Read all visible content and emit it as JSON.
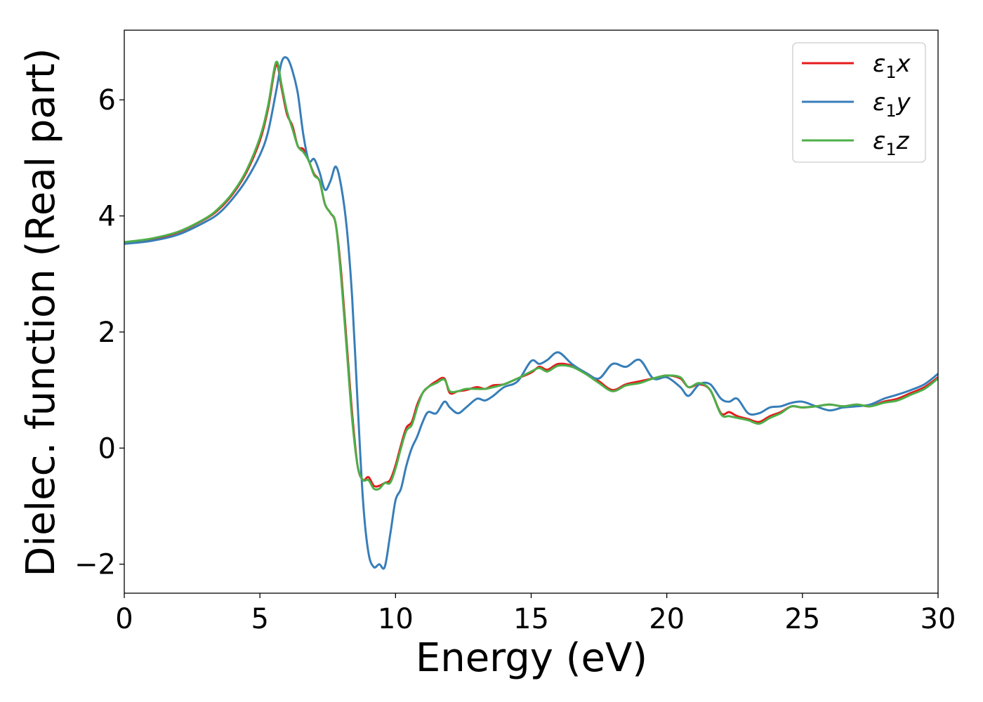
{
  "chart_data": {
    "type": "line",
    "xlabel": "Energy (eV)",
    "ylabel": "Dielec. function (Real part)",
    "xlim": [
      0,
      30
    ],
    "ylim": [
      -2.5,
      7.2
    ],
    "xticks": [
      0,
      5,
      10,
      15,
      20,
      25,
      30
    ],
    "xtick_labels": [
      "0",
      "5",
      "10",
      "15",
      "20",
      "25",
      "30"
    ],
    "yticks": [
      -2,
      0,
      2,
      4,
      6
    ],
    "ytick_labels": [
      "−2",
      "0",
      "2",
      "4",
      "6"
    ],
    "grid": false,
    "legend_position": "top-right",
    "series": [
      {
        "name": "ε1x",
        "legend_base": "ε",
        "legend_sub": "1",
        "legend_suffix": "x",
        "color": "#e41a1c",
        "x": [
          0,
          1,
          2,
          3,
          3.5,
          4,
          4.5,
          5,
          5.3,
          5.6,
          5.8,
          6.0,
          6.2,
          6.4,
          6.6,
          6.8,
          7.0,
          7.2,
          7.4,
          7.6,
          7.8,
          8.0,
          8.2,
          8.4,
          8.6,
          8.8,
          9.0,
          9.2,
          9.4,
          9.6,
          9.8,
          10.0,
          10.2,
          10.4,
          10.6,
          10.8,
          11.0,
          11.2,
          11.5,
          11.8,
          12.0,
          12.3,
          12.6,
          13.0,
          13.3,
          13.6,
          14.0,
          14.5,
          15.0,
          15.3,
          15.6,
          16.0,
          16.5,
          17.0,
          17.5,
          18.0,
          18.5,
          19.0,
          19.5,
          20.0,
          20.5,
          20.8,
          21.2,
          21.6,
          22.0,
          22.3,
          22.6,
          23.0,
          23.4,
          23.8,
          24.2,
          24.6,
          25.0,
          25.5,
          26.0,
          26.5,
          27.0,
          27.5,
          28.0,
          28.5,
          29.0,
          29.5,
          30.0
        ],
        "y": [
          3.54,
          3.6,
          3.72,
          3.95,
          4.12,
          4.38,
          4.75,
          5.3,
          5.85,
          6.6,
          6.2,
          5.75,
          5.55,
          5.2,
          5.15,
          4.95,
          4.72,
          4.6,
          4.2,
          4.05,
          3.85,
          3.0,
          1.8,
          0.6,
          -0.3,
          -0.55,
          -0.5,
          -0.65,
          -0.65,
          -0.6,
          -0.55,
          -0.3,
          0.05,
          0.35,
          0.45,
          0.75,
          0.95,
          1.05,
          1.15,
          1.2,
          0.95,
          0.98,
          1.0,
          1.05,
          1.02,
          1.08,
          1.1,
          1.2,
          1.3,
          1.4,
          1.35,
          1.45,
          1.42,
          1.3,
          1.15,
          1.0,
          1.1,
          1.15,
          1.2,
          1.25,
          1.2,
          1.05,
          1.1,
          1.0,
          0.6,
          0.62,
          0.55,
          0.5,
          0.45,
          0.55,
          0.62,
          0.72,
          0.7,
          0.72,
          0.75,
          0.72,
          0.75,
          0.72,
          0.8,
          0.85,
          0.95,
          1.05,
          1.22
        ]
      },
      {
        "name": "ε1y",
        "legend_base": "ε",
        "legend_sub": "1",
        "legend_suffix": "y",
        "color": "#377eb8",
        "x": [
          0,
          1,
          2,
          3,
          3.5,
          4,
          4.5,
          5,
          5.3,
          5.6,
          5.8,
          6.0,
          6.2,
          6.4,
          6.6,
          6.8,
          7.0,
          7.2,
          7.4,
          7.6,
          7.8,
          8.0,
          8.2,
          8.4,
          8.6,
          8.8,
          9.0,
          9.2,
          9.4,
          9.6,
          9.8,
          10.0,
          10.2,
          10.4,
          10.6,
          10.8,
          11.0,
          11.2,
          11.5,
          11.8,
          12.0,
          12.3,
          12.6,
          13.0,
          13.3,
          13.6,
          14.0,
          14.5,
          15.0,
          15.3,
          15.6,
          16.0,
          16.5,
          17.0,
          17.5,
          18.0,
          18.5,
          19.0,
          19.5,
          20.0,
          20.5,
          20.8,
          21.2,
          21.6,
          22.0,
          22.3,
          22.6,
          23.0,
          23.4,
          23.8,
          24.2,
          24.6,
          25.0,
          25.5,
          26.0,
          26.5,
          27.0,
          27.5,
          28.0,
          28.5,
          29.0,
          29.5,
          30.0
        ],
        "y": [
          3.52,
          3.57,
          3.68,
          3.9,
          4.05,
          4.3,
          4.62,
          5.05,
          5.45,
          6.15,
          6.65,
          6.72,
          6.5,
          6.1,
          5.4,
          4.95,
          4.98,
          4.75,
          4.45,
          4.6,
          4.85,
          4.5,
          3.8,
          2.6,
          0.8,
          -0.9,
          -1.8,
          -2.05,
          -2.0,
          -2.05,
          -1.5,
          -0.9,
          -0.7,
          -0.3,
          0.0,
          0.2,
          0.45,
          0.62,
          0.6,
          0.8,
          0.7,
          0.6,
          0.7,
          0.85,
          0.82,
          0.9,
          1.05,
          1.15,
          1.5,
          1.45,
          1.52,
          1.65,
          1.45,
          1.3,
          1.2,
          1.45,
          1.4,
          1.52,
          1.2,
          1.22,
          1.05,
          0.9,
          1.1,
          1.1,
          0.85,
          0.8,
          0.85,
          0.6,
          0.6,
          0.7,
          0.72,
          0.78,
          0.8,
          0.72,
          0.65,
          0.7,
          0.72,
          0.75,
          0.85,
          0.92,
          1.0,
          1.1,
          1.28
        ]
      },
      {
        "name": "ε1z",
        "legend_base": "ε",
        "legend_sub": "1",
        "legend_suffix": "z",
        "color": "#4daf4a",
        "x": [
          0,
          1,
          2,
          3,
          3.5,
          4,
          4.5,
          5,
          5.3,
          5.6,
          5.8,
          6.0,
          6.2,
          6.4,
          6.6,
          6.8,
          7.0,
          7.2,
          7.4,
          7.6,
          7.8,
          8.0,
          8.2,
          8.4,
          8.6,
          8.8,
          9.0,
          9.2,
          9.4,
          9.6,
          9.8,
          10.0,
          10.2,
          10.4,
          10.6,
          10.8,
          11.0,
          11.2,
          11.5,
          11.8,
          12.0,
          12.3,
          12.6,
          13.0,
          13.3,
          13.6,
          14.0,
          14.5,
          15.0,
          15.3,
          15.6,
          16.0,
          16.5,
          17.0,
          17.5,
          18.0,
          18.5,
          19.0,
          19.5,
          20.0,
          20.5,
          20.8,
          21.2,
          21.6,
          22.0,
          22.3,
          22.6,
          23.0,
          23.4,
          23.8,
          24.2,
          24.6,
          25.0,
          25.5,
          26.0,
          26.5,
          27.0,
          27.5,
          28.0,
          28.5,
          29.0,
          29.5,
          30.0
        ],
        "y": [
          3.55,
          3.61,
          3.73,
          3.96,
          4.14,
          4.4,
          4.78,
          5.35,
          5.9,
          6.65,
          6.25,
          5.8,
          5.5,
          5.2,
          5.1,
          4.95,
          4.7,
          4.6,
          4.2,
          4.05,
          3.85,
          2.9,
          1.7,
          0.5,
          -0.3,
          -0.55,
          -0.55,
          -0.7,
          -0.7,
          -0.6,
          -0.6,
          -0.35,
          0.0,
          0.3,
          0.4,
          0.7,
          0.95,
          1.05,
          1.12,
          1.18,
          0.98,
          0.98,
          1.02,
          1.02,
          1.02,
          1.05,
          1.1,
          1.2,
          1.32,
          1.38,
          1.32,
          1.42,
          1.4,
          1.28,
          1.12,
          0.98,
          1.08,
          1.12,
          1.2,
          1.25,
          1.22,
          1.05,
          1.12,
          1.0,
          0.58,
          0.55,
          0.52,
          0.48,
          0.42,
          0.52,
          0.6,
          0.72,
          0.7,
          0.72,
          0.75,
          0.72,
          0.75,
          0.72,
          0.78,
          0.82,
          0.92,
          1.02,
          1.2
        ]
      }
    ]
  }
}
